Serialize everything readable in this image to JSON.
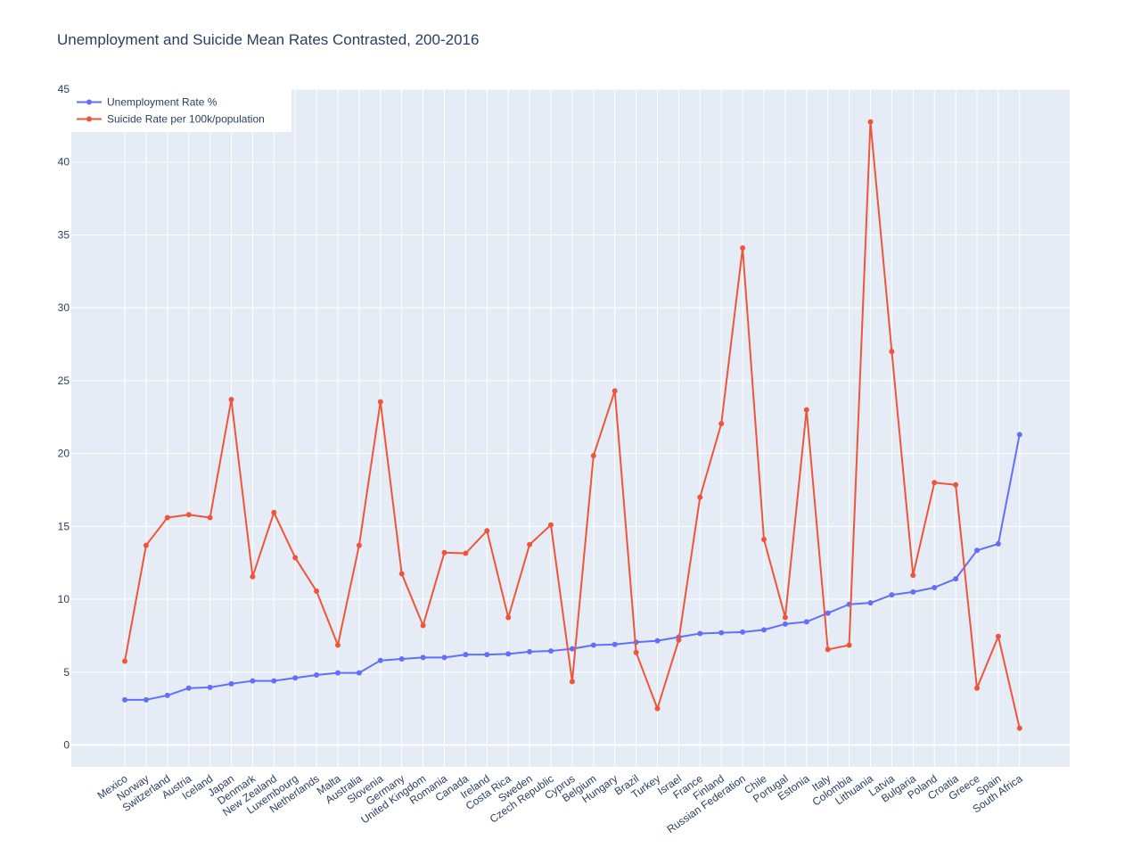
{
  "chart_data": {
    "type": "line",
    "title": "Unemployment and Suicide Mean Rates Contrasted, 200-2016",
    "xlabel": "",
    "ylabel": "",
    "ylim": [
      -1.5,
      45
    ],
    "yticks": [
      0,
      5,
      10,
      15,
      20,
      25,
      30,
      35,
      40,
      45
    ],
    "grid": true,
    "legend_position": "top-left",
    "categories": [
      "Mexico",
      "Norway",
      "Switzerland",
      "Austria",
      "Iceland",
      "Japan",
      "Denmark",
      "New Zealand",
      "Luxembourg",
      "Netherlands",
      "Malta",
      "Australia",
      "Slovenia",
      "Germany",
      "United Kingdom",
      "Romania",
      "Canada",
      "Ireland",
      "Costa Rica",
      "Sweden",
      "Czech Republic",
      "Cyprus",
      "Belgium",
      "Hungary",
      "Brazil",
      "Turkey",
      "Israel",
      "France",
      "Finland",
      "Russian Federation",
      "Chile",
      "Portugal",
      "Estonia",
      "Italy",
      "Colombia",
      "Lithuania",
      "Latvia",
      "Bulgaria",
      "Poland",
      "Croatia",
      "Greece",
      "Spain",
      "South Africa"
    ],
    "series": [
      {
        "name": "Unemployment Rate %",
        "color": "#636efa",
        "values": [
          3.1,
          3.1,
          3.4,
          3.9,
          3.95,
          4.2,
          4.4,
          4.4,
          4.6,
          4.8,
          4.95,
          4.95,
          5.8,
          5.9,
          6.0,
          6.0,
          6.2,
          6.2,
          6.25,
          6.4,
          6.45,
          6.6,
          6.85,
          6.9,
          7.05,
          7.15,
          7.4,
          7.65,
          7.7,
          7.75,
          7.9,
          8.3,
          8.45,
          9.05,
          9.65,
          9.75,
          10.3,
          10.5,
          10.8,
          11.4,
          13.35,
          13.8,
          21.3
        ]
      },
      {
        "name": "Suicide Rate per 100k/population",
        "color": "#ef553b",
        "values": [
          5.75,
          13.7,
          15.6,
          15.8,
          15.6,
          23.7,
          11.55,
          15.95,
          12.85,
          10.55,
          6.85,
          13.7,
          23.55,
          11.75,
          8.2,
          13.2,
          13.15,
          14.7,
          8.75,
          13.75,
          15.1,
          4.35,
          19.85,
          24.3,
          6.35,
          2.5,
          7.2,
          17.0,
          22.05,
          34.1,
          14.1,
          8.75,
          23.0,
          6.55,
          6.85,
          42.75,
          27.0,
          11.65,
          18.0,
          17.85,
          3.9,
          7.45,
          1.15
        ]
      }
    ]
  }
}
